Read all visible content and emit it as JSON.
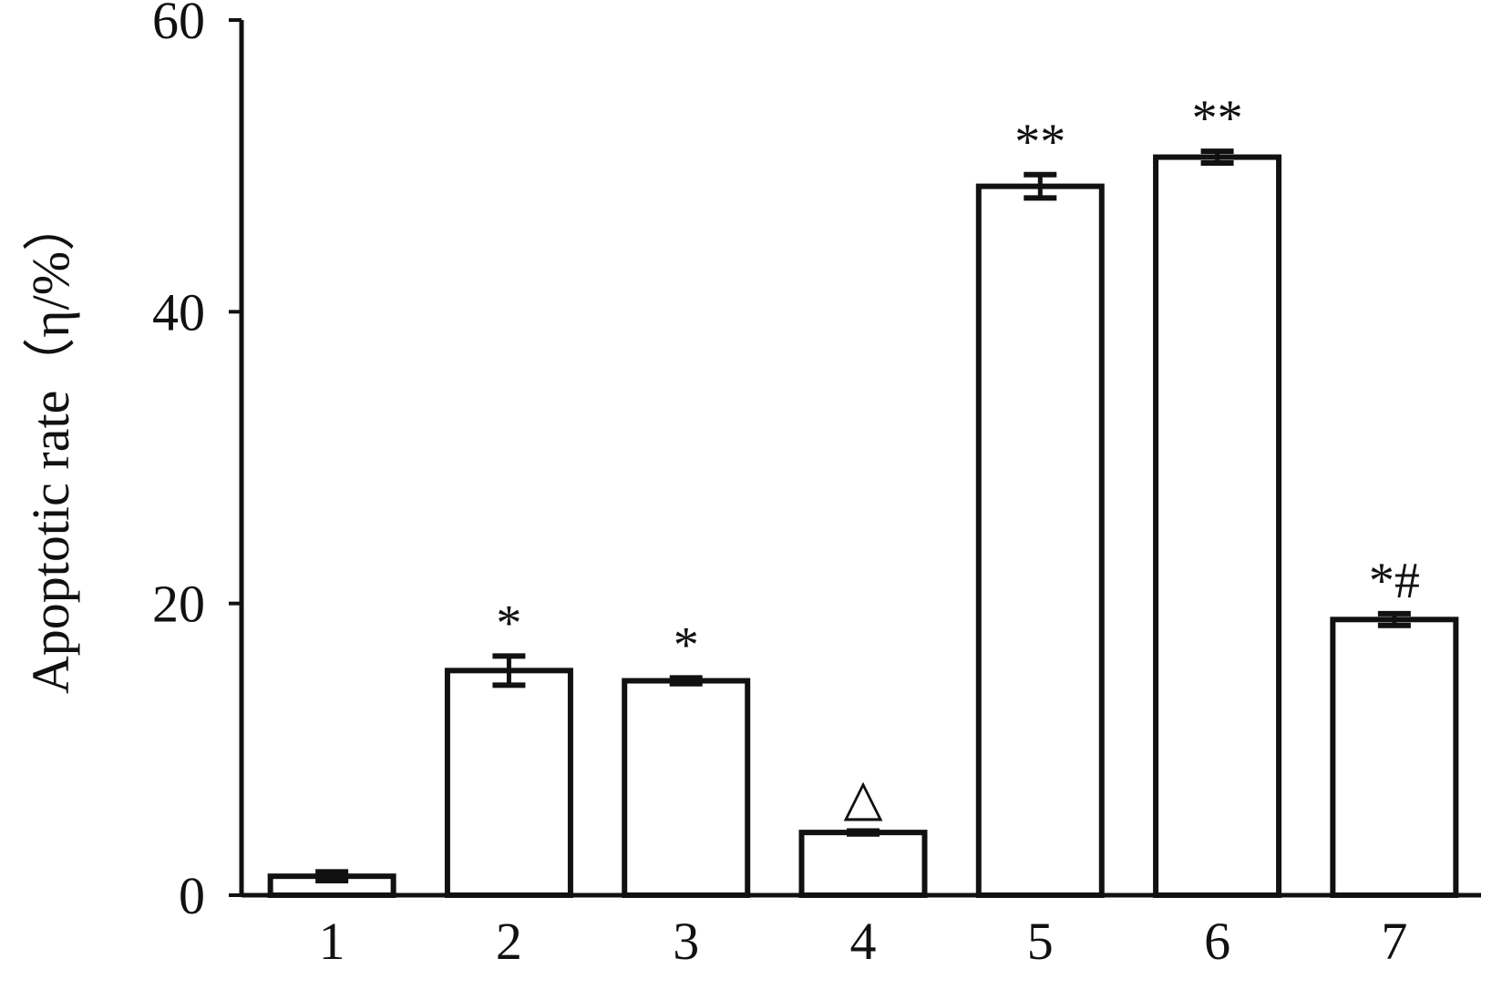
{
  "chart_data": {
    "type": "bar",
    "title": "",
    "xlabel": "",
    "ylabel": "Apoptotic rate（η/%）",
    "ylim": [
      0,
      60
    ],
    "yticks": [
      0,
      20,
      40,
      60
    ],
    "grid": false,
    "categories": [
      "1",
      "2",
      "3",
      "4",
      "5",
      "6",
      "7"
    ],
    "values": [
      1.3,
      15.4,
      14.7,
      4.3,
      48.6,
      50.6,
      18.9
    ],
    "errors": [
      0.3,
      1.0,
      0.2,
      0.1,
      0.8,
      0.4,
      0.4
    ],
    "annotations": [
      "",
      "*",
      "*",
      "△",
      "**",
      "**",
      "*#"
    ],
    "colors": {
      "bar_fill": "#ffffff",
      "bar_stroke": "#111111"
    }
  }
}
